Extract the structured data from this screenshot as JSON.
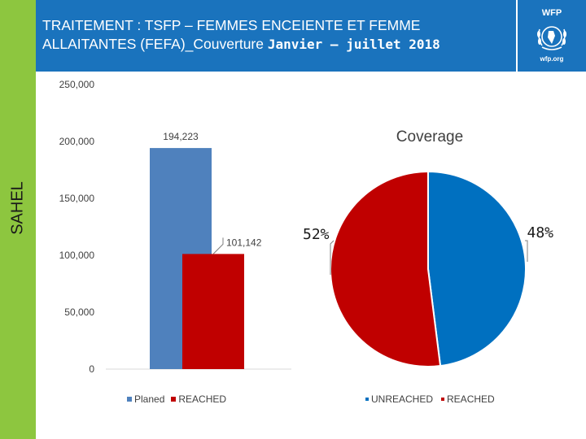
{
  "slide": {
    "title_line1": "TRAITEMENT : TSFP – FEMMES ENCEIENTE ET FEMME",
    "title_line2_a": "ALLAITANTES (FEFA)_Couverture ",
    "title_line2_b": "Janvier – juillet 2018",
    "side_label": "SAHEL",
    "logo_top": "WFP",
    "logo_bottom": "wfp.org"
  },
  "colors": {
    "sidebar": "#8dc63f",
    "header": "#1a73bd",
    "planed": "#4f81bd",
    "reached": "#c00000",
    "unreached": "#0070c0"
  },
  "chart_data": [
    {
      "type": "bar",
      "title": "",
      "categories": [
        ""
      ],
      "series": [
        {
          "name": "Planed",
          "values": [
            194223
          ],
          "value_labels": [
            "194,223"
          ]
        },
        {
          "name": "REACHED",
          "values": [
            101142
          ],
          "value_labels": [
            "101,142"
          ]
        }
      ],
      "ylim": [
        0,
        250000
      ],
      "yticks": [
        "0",
        "50,000",
        "100,000",
        "150,000",
        "200,000",
        "250,000"
      ],
      "ytick_values": [
        0,
        50000,
        100000,
        150000,
        200000,
        250000
      ],
      "xlabel": "",
      "ylabel": "SAHEL",
      "legend": "bottom"
    },
    {
      "type": "pie",
      "title": "Coverage",
      "slices": [
        {
          "name": "UNREACHED",
          "value": 48,
          "label": "48%"
        },
        {
          "name": "REACHED",
          "value": 52,
          "label": "52%"
        }
      ],
      "legend": "bottom"
    }
  ]
}
